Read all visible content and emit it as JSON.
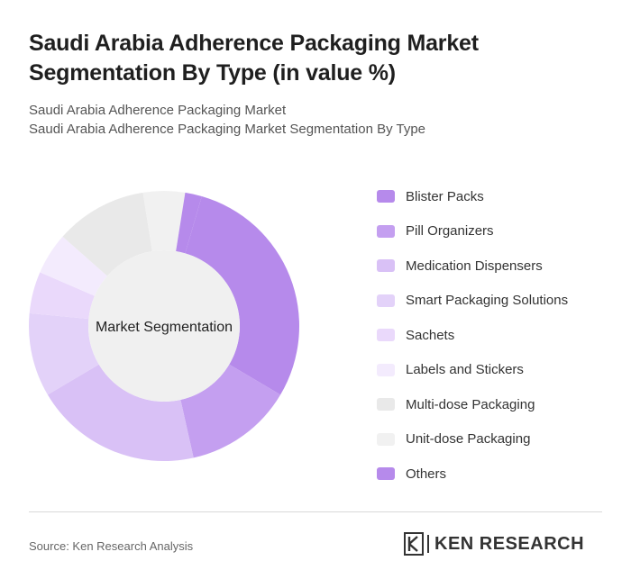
{
  "header": {
    "title": "Saudi Arabia Adherence Packaging Market Segmentation By Type (in value %)",
    "subtitle_line1": "Saudi Arabia Adherence Packaging Market",
    "subtitle_line2": "Saudi Arabia Adherence Packaging Market Segmentation By Type"
  },
  "chart_data": {
    "type": "pie",
    "variant": "donut",
    "center_label": "Market Segmentation",
    "legend_position": "right",
    "categories": [
      "Blister Packs",
      "Pill Organizers",
      "Medication Dispensers",
      "Smart Packaging Solutions",
      "Sachets",
      "Labels and Stickers",
      "Multi-dose Packaging",
      "Unit-dose Packaging",
      "Others"
    ],
    "values": [
      29,
      13,
      20,
      10,
      5,
      5,
      11,
      5,
      2
    ],
    "colors": [
      "#b68aeb",
      "#c49ff0",
      "#d9c1f6",
      "#e3d2f9",
      "#ead9fb",
      "#f3ebfd",
      "#e9e9e9",
      "#f1f1f1",
      "#b68aeb"
    ]
  },
  "footer": {
    "source": "Source: Ken Research Analysis",
    "brand": "KEN RESEARCH",
    "brand_mark": "K"
  }
}
